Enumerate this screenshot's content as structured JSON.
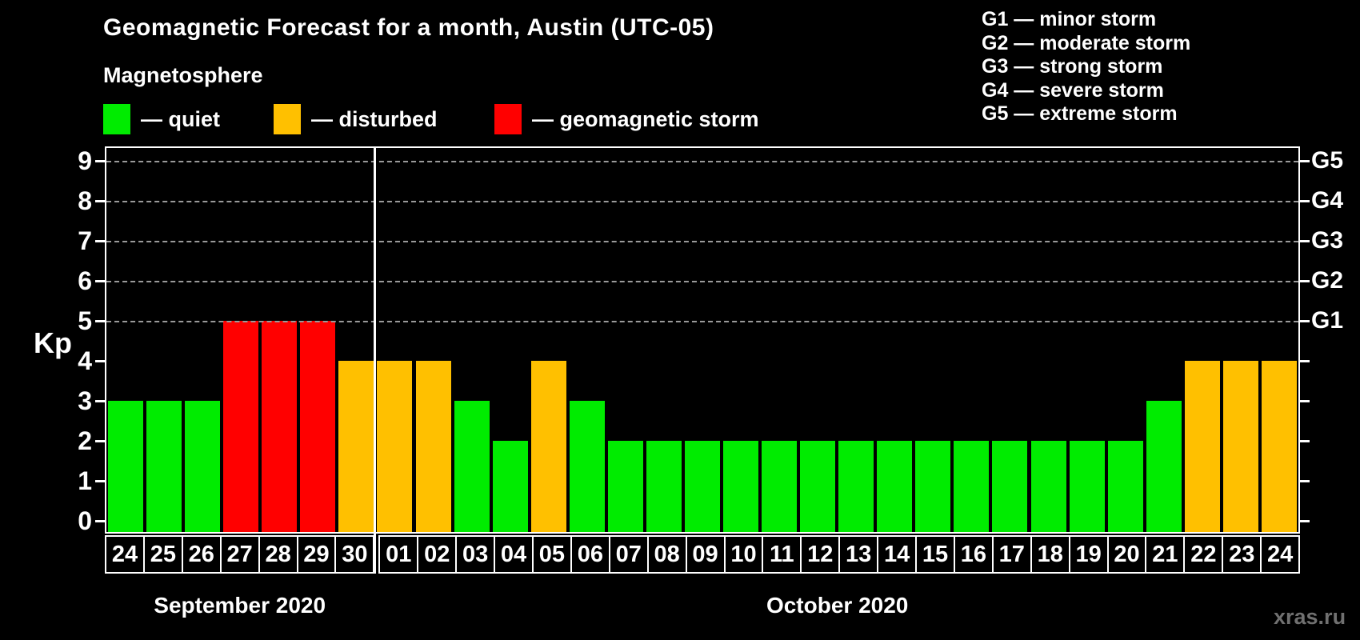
{
  "title": "Geomagnetic Forecast for a month, Austin (UTC-05)",
  "subtitle": "Magnetosphere",
  "legend": [
    {
      "status": "quiet",
      "label": "— quiet",
      "color": "#00EC00"
    },
    {
      "status": "disturbed",
      "label": "— disturbed",
      "color": "#FFC000"
    },
    {
      "status": "storm",
      "label": "— geomagnetic storm",
      "color": "#FF0000"
    }
  ],
  "g_scale_legend": [
    "G1 — minor storm",
    "G2 — moderate storm",
    "G3 — strong storm",
    "G4 — severe storm",
    "G5 — extreme storm"
  ],
  "watermark": "xras.ru",
  "chart_data": {
    "type": "bar",
    "title": "Geomagnetic Forecast for a month, Austin (UTC-05)",
    "ylabel": "Kp",
    "ylim": [
      0,
      9
    ],
    "y_ticks": [
      0,
      1,
      2,
      3,
      4,
      5,
      6,
      7,
      8,
      9
    ],
    "grid": "dashed horizontal lines at storm levels only",
    "grid_kp_levels": [
      5,
      6,
      7,
      8,
      9
    ],
    "right_axis_labels": [
      {
        "kp": 5,
        "label": "G1"
      },
      {
        "kp": 6,
        "label": "G2"
      },
      {
        "kp": 7,
        "label": "G3"
      },
      {
        "kp": 8,
        "label": "G4"
      },
      {
        "kp": 9,
        "label": "G5"
      }
    ],
    "colors": {
      "quiet": "#00EC00",
      "disturbed": "#FFC000",
      "storm": "#FF0000"
    },
    "months": [
      {
        "name": "September 2020",
        "days": 7
      },
      {
        "name": "October 2020",
        "days": 24
      }
    ],
    "points": [
      {
        "day": "24",
        "kp": 3,
        "status": "quiet"
      },
      {
        "day": "25",
        "kp": 3,
        "status": "quiet"
      },
      {
        "day": "26",
        "kp": 3,
        "status": "quiet"
      },
      {
        "day": "27",
        "kp": 5,
        "status": "storm"
      },
      {
        "day": "28",
        "kp": 5,
        "status": "storm"
      },
      {
        "day": "29",
        "kp": 5,
        "status": "storm"
      },
      {
        "day": "30",
        "kp": 4,
        "status": "disturbed"
      },
      {
        "day": "01",
        "kp": 4,
        "status": "disturbed"
      },
      {
        "day": "02",
        "kp": 4,
        "status": "disturbed"
      },
      {
        "day": "03",
        "kp": 3,
        "status": "quiet"
      },
      {
        "day": "04",
        "kp": 2,
        "status": "quiet"
      },
      {
        "day": "05",
        "kp": 4,
        "status": "disturbed"
      },
      {
        "day": "06",
        "kp": 3,
        "status": "quiet"
      },
      {
        "day": "07",
        "kp": 2,
        "status": "quiet"
      },
      {
        "day": "08",
        "kp": 2,
        "status": "quiet"
      },
      {
        "day": "09",
        "kp": 2,
        "status": "quiet"
      },
      {
        "day": "10",
        "kp": 2,
        "status": "quiet"
      },
      {
        "day": "11",
        "kp": 2,
        "status": "quiet"
      },
      {
        "day": "12",
        "kp": 2,
        "status": "quiet"
      },
      {
        "day": "13",
        "kp": 2,
        "status": "quiet"
      },
      {
        "day": "14",
        "kp": 2,
        "status": "quiet"
      },
      {
        "day": "15",
        "kp": 2,
        "status": "quiet"
      },
      {
        "day": "16",
        "kp": 2,
        "status": "quiet"
      },
      {
        "day": "17",
        "kp": 2,
        "status": "quiet"
      },
      {
        "day": "18",
        "kp": 2,
        "status": "quiet"
      },
      {
        "day": "19",
        "kp": 2,
        "status": "quiet"
      },
      {
        "day": "20",
        "kp": 2,
        "status": "quiet"
      },
      {
        "day": "21",
        "kp": 3,
        "status": "quiet"
      },
      {
        "day": "22",
        "kp": 4,
        "status": "disturbed"
      },
      {
        "day": "23",
        "kp": 4,
        "status": "disturbed"
      },
      {
        "day": "24",
        "kp": 4,
        "status": "disturbed"
      }
    ]
  }
}
